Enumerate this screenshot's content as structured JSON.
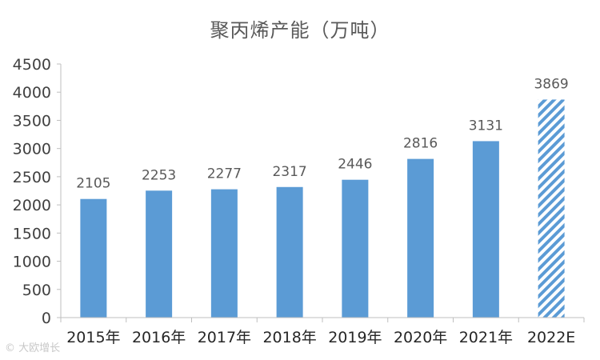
{
  "chart_data": {
    "type": "bar",
    "title": "聚丙烯产能（万吨）",
    "categories": [
      "2015年",
      "2016年",
      "2017年",
      "2018年",
      "2019年",
      "2020年",
      "2021年",
      "2022E"
    ],
    "values": [
      2105,
      2253,
      2277,
      2317,
      2446,
      2816,
      3131,
      3869
    ],
    "data_labels": [
      "2105",
      "2253",
      "2277",
      "2317",
      "2446",
      "2816",
      "3131",
      "3869"
    ],
    "estimated_index": 7,
    "xlabel": "",
    "ylabel": "",
    "ylim": [
      0,
      4500
    ],
    "yticks": [
      "0",
      "500",
      "1000",
      "1500",
      "2000",
      "2500",
      "3000",
      "3500",
      "4000",
      "4500"
    ],
    "grid": false,
    "legend": "none",
    "colors": {
      "bar": "#5b9bd5",
      "estimate_hatch": "#5b9bd5",
      "axis": "#bfbfbf"
    }
  },
  "watermark": "© 大欧增长"
}
